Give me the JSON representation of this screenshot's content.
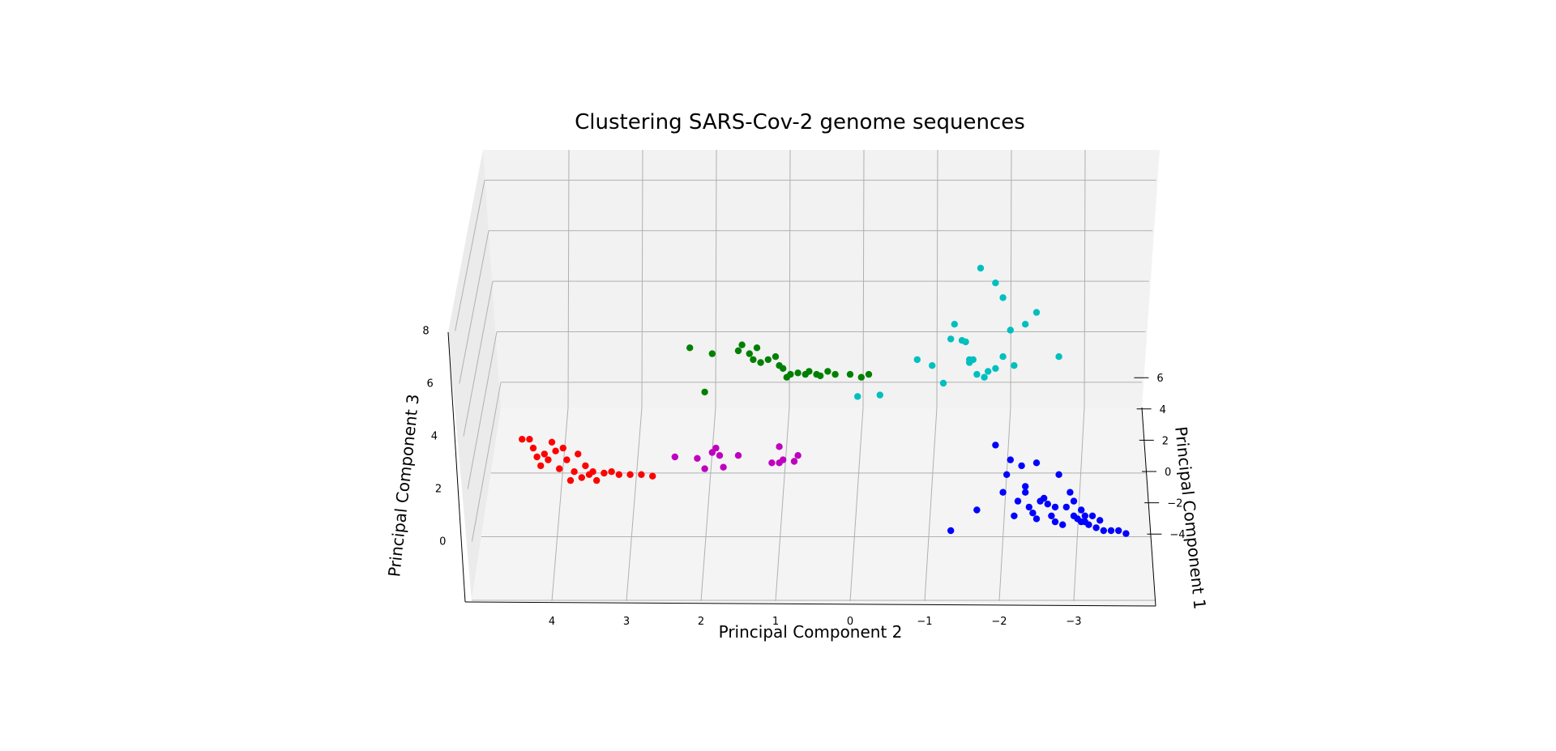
{
  "chart_data": {
    "type": "scatter",
    "projection": "3d",
    "title": "Clustering SARS-Cov-2 genome sequences",
    "xlabel": "Principal Component 2",
    "ylabel": "Principal Component 1",
    "zlabel": "Principal Component 3",
    "xticks": [
      "4",
      "3",
      "2",
      "1",
      "0",
      "−1",
      "−2",
      "−3"
    ],
    "xtick_values": [
      4,
      3,
      2,
      1,
      0,
      -1,
      -2,
      -3
    ],
    "yticks": [
      "6",
      "4",
      "2",
      "0",
      "−2",
      "−4"
    ],
    "ytick_values": [
      6,
      4,
      2,
      0,
      -2,
      -4
    ],
    "zticks": [
      "8",
      "6",
      "4",
      "2",
      "0"
    ],
    "zlim": [
      -1,
      9
    ],
    "grid": true,
    "series": [
      {
        "color": "#ff0000",
        "points": [
          [
            4.4,
            3.1
          ],
          [
            4.3,
            3.1
          ],
          [
            4.25,
            2.8
          ],
          [
            4.2,
            2.5
          ],
          [
            4.15,
            2.2
          ],
          [
            4.1,
            2.6
          ],
          [
            4.05,
            2.4
          ],
          [
            4.0,
            3.0
          ],
          [
            3.95,
            2.7
          ],
          [
            3.9,
            2.1
          ],
          [
            3.85,
            2.8
          ],
          [
            3.8,
            2.4
          ],
          [
            3.75,
            1.7
          ],
          [
            3.7,
            2.0
          ],
          [
            3.65,
            2.6
          ],
          [
            3.6,
            1.8
          ],
          [
            3.55,
            2.2
          ],
          [
            3.5,
            1.9
          ],
          [
            3.45,
            2.0
          ],
          [
            3.4,
            1.7
          ],
          [
            3.3,
            1.95
          ],
          [
            3.2,
            2.0
          ],
          [
            3.1,
            1.9
          ],
          [
            2.95,
            1.9
          ],
          [
            2.8,
            1.9
          ],
          [
            2.65,
            1.85
          ]
        ]
      },
      {
        "color": "#bf00bf",
        "points": [
          [
            2.35,
            2.5
          ],
          [
            2.05,
            2.45
          ],
          [
            1.95,
            2.1
          ],
          [
            1.85,
            2.65
          ],
          [
            1.8,
            2.8
          ],
          [
            1.75,
            2.55
          ],
          [
            1.7,
            2.15
          ],
          [
            1.5,
            2.55
          ],
          [
            1.05,
            2.3
          ],
          [
            0.95,
            2.3
          ],
          [
            0.9,
            2.4
          ],
          [
            0.95,
            2.85
          ],
          [
            0.75,
            2.35
          ],
          [
            0.7,
            2.55
          ]
        ]
      },
      {
        "color": "#008000",
        "points": [
          [
            2.15,
            6.2
          ],
          [
            1.95,
            4.7
          ],
          [
            1.85,
            6.0
          ],
          [
            1.5,
            6.1
          ],
          [
            1.45,
            6.3
          ],
          [
            1.35,
            6.0
          ],
          [
            1.3,
            5.8
          ],
          [
            1.25,
            6.2
          ],
          [
            1.2,
            5.7
          ],
          [
            1.1,
            5.8
          ],
          [
            1.0,
            5.9
          ],
          [
            0.95,
            5.6
          ],
          [
            0.9,
            5.5
          ],
          [
            0.85,
            5.2
          ],
          [
            0.8,
            5.3
          ],
          [
            0.7,
            5.35
          ],
          [
            0.6,
            5.3
          ],
          [
            0.55,
            5.4
          ],
          [
            0.45,
            5.3
          ],
          [
            0.4,
            5.25
          ],
          [
            0.3,
            5.4
          ],
          [
            0.2,
            5.3
          ],
          [
            0.0,
            5.3
          ],
          [
            -0.15,
            5.2
          ],
          [
            -0.25,
            5.3
          ]
        ]
      },
      {
        "color": "#00bfbf",
        "points": [
          [
            -0.1,
            4.55
          ],
          [
            -0.4,
            4.6
          ],
          [
            -0.9,
            5.8
          ],
          [
            -1.1,
            5.6
          ],
          [
            -1.25,
            5.0
          ],
          [
            -1.35,
            6.5
          ],
          [
            -1.4,
            7.0
          ],
          [
            -1.55,
            6.4
          ],
          [
            -1.6,
            5.8
          ],
          [
            -1.65,
            5.8
          ],
          [
            -1.7,
            5.3
          ],
          [
            -1.75,
            8.9
          ],
          [
            -1.8,
            5.2
          ],
          [
            -1.85,
            5.4
          ],
          [
            -1.95,
            8.4
          ],
          [
            -2.05,
            7.9
          ],
          [
            -2.15,
            6.8
          ],
          [
            -2.2,
            5.6
          ],
          [
            -2.35,
            7.0
          ],
          [
            -2.5,
            7.4
          ],
          [
            -2.8,
            5.9
          ],
          [
            -1.5,
            6.45
          ],
          [
            -1.95,
            5.5
          ],
          [
            -1.6,
            5.7
          ],
          [
            -2.05,
            5.9
          ]
        ]
      },
      {
        "color": "#0000ff",
        "points": [
          [
            -1.35,
            0.0
          ],
          [
            -1.7,
            0.7
          ],
          [
            -1.95,
            2.9
          ],
          [
            -2.05,
            1.3
          ],
          [
            -2.1,
            1.9
          ],
          [
            -2.15,
            2.4
          ],
          [
            -2.25,
            1.0
          ],
          [
            -2.35,
            1.3
          ],
          [
            -2.4,
            0.8
          ],
          [
            -2.5,
            0.4
          ],
          [
            -2.6,
            1.1
          ],
          [
            -2.7,
            0.5
          ],
          [
            -2.75,
            0.3
          ],
          [
            -2.85,
            0.2
          ],
          [
            -3.0,
            0.5
          ],
          [
            -3.05,
            0.4
          ],
          [
            -3.1,
            0.3
          ],
          [
            -3.15,
            0.3
          ],
          [
            -3.2,
            0.2
          ],
          [
            -3.3,
            0.1
          ],
          [
            -3.4,
            0.0
          ],
          [
            -3.5,
            0.0
          ],
          [
            -3.6,
            0.0
          ],
          [
            -3.7,
            -0.1
          ],
          [
            -2.3,
            2.2
          ],
          [
            -2.5,
            2.3
          ],
          [
            -2.9,
            0.8
          ],
          [
            -2.95,
            1.3
          ],
          [
            -3.0,
            1.0
          ],
          [
            -3.1,
            0.7
          ],
          [
            -3.25,
            0.5
          ],
          [
            -2.8,
            1.9
          ],
          [
            -2.75,
            0.8
          ],
          [
            -2.65,
            0.9
          ],
          [
            -2.45,
            0.6
          ],
          [
            -2.55,
            1.0
          ],
          [
            -2.35,
            1.5
          ],
          [
            -2.2,
            0.5
          ],
          [
            -3.35,
            0.35
          ],
          [
            -3.15,
            0.5
          ]
        ]
      }
    ]
  }
}
